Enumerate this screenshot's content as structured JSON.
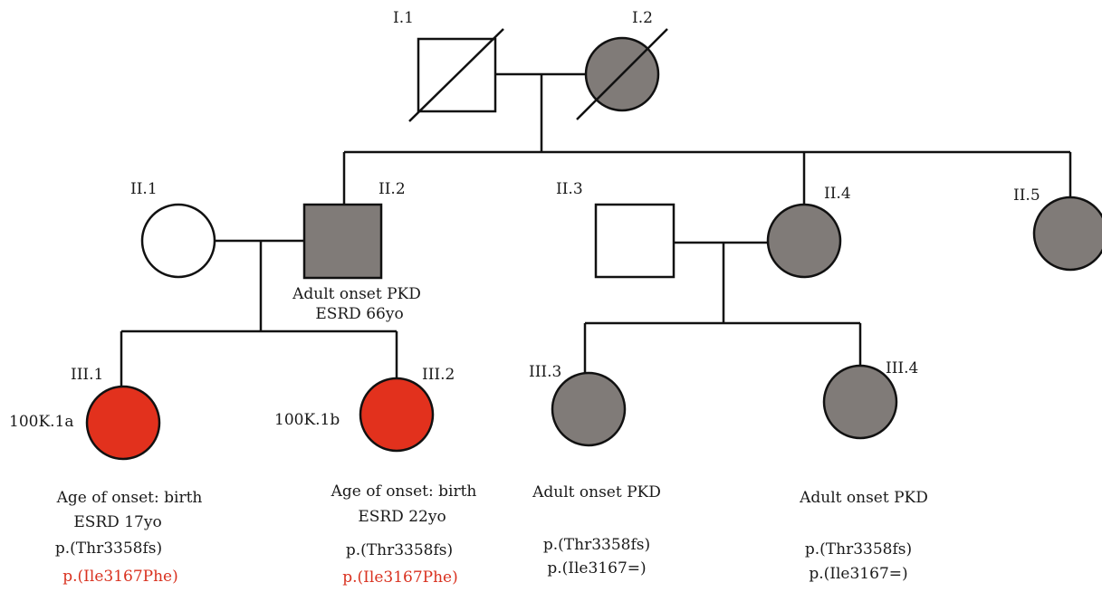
{
  "colors": {
    "affected": "#807b78",
    "severe": "#e2311d",
    "unaffected": "#ffffff",
    "stroke": "#111111",
    "variant_text": "#d9311f"
  },
  "individuals": {
    "I1": {
      "id": "I.1"
    },
    "I2": {
      "id": "I.2"
    },
    "II1": {
      "id": "II.1"
    },
    "II2": {
      "id": "II.2",
      "notes": [
        "Adult onset PKD",
        "ESRD 66yo"
      ]
    },
    "II3": {
      "id": "II.3"
    },
    "II4": {
      "id": "II.4"
    },
    "II5": {
      "id": "II.5"
    },
    "III1": {
      "id": "III.1",
      "sample": "100K.1a",
      "notes": [
        "Age of onset: birth",
        "ESRD 17yo"
      ],
      "variants": [
        "p.(Thr3358fs)",
        "p.(Ile3167Phe)"
      ]
    },
    "III2": {
      "id": "III.2",
      "sample": "100K.1b",
      "notes": [
        "Age of onset: birth",
        "ESRD 22yo"
      ],
      "variants": [
        "p.(Thr3358fs)",
        "p.(Ile3167Phe)"
      ]
    },
    "III3": {
      "id": "III.3",
      "notes": [
        "Adult onset PKD"
      ],
      "variants": [
        "p.(Thr3358fs)",
        "p.(Ile3167=)"
      ]
    },
    "III4": {
      "id": "III.4",
      "notes": [
        "Adult onset PKD"
      ],
      "variants": [
        "p.(Thr3358fs)",
        "p.(Ile3167=)"
      ]
    }
  }
}
